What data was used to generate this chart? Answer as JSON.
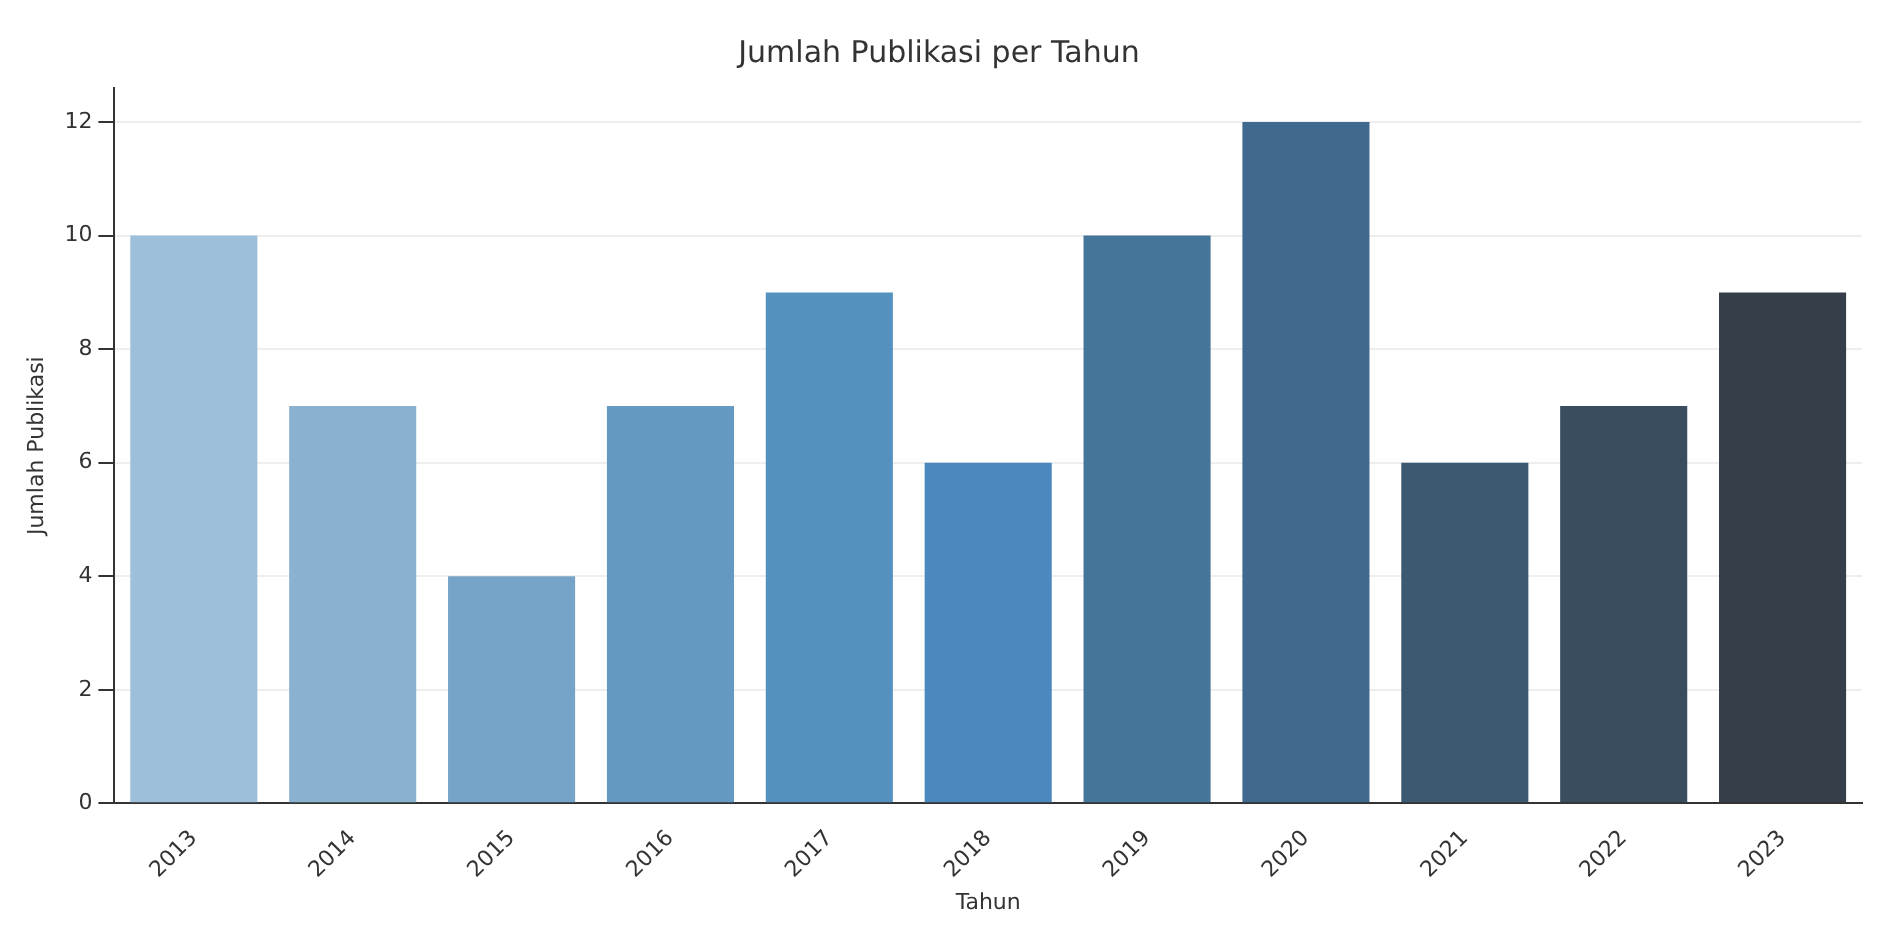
{
  "chart_data": {
    "type": "bar",
    "title": "Jumlah Publikasi per Tahun",
    "xlabel": "Tahun",
    "ylabel": "Jumlah Publikasi",
    "categories": [
      "2013",
      "2014",
      "2015",
      "2016",
      "2017",
      "2018",
      "2019",
      "2020",
      "2021",
      "2022",
      "2023"
    ],
    "values": [
      10,
      7,
      4,
      7,
      9,
      6,
      10,
      12,
      6,
      7,
      9
    ],
    "colors": [
      "#9dbfd9",
      "#8ab2d0",
      "#76a4c8",
      "#6499c1",
      "#5591bf",
      "#4a88bd",
      "#46759a",
      "#3f6a8e",
      "#3b5a72",
      "#3a4d5e",
      "#363f49"
    ],
    "ylim": [
      0,
      12.6
    ],
    "yticks": [
      0,
      2,
      4,
      6,
      8,
      10,
      12
    ],
    "grid": "y"
  }
}
